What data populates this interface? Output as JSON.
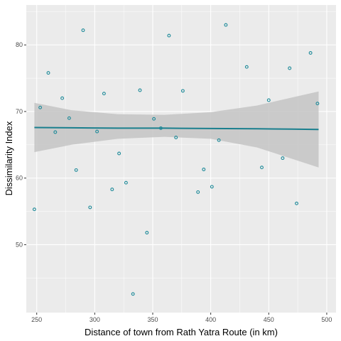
{
  "chart_data": {
    "type": "scatter",
    "title": "",
    "xlabel": "Distance of town from Rath Yatra Route (in km)",
    "ylabel": "Dissimilarity Index",
    "xlim": [
      241,
      508
    ],
    "ylim": [
      39.8,
      86
    ],
    "x_ticks": [
      250,
      300,
      350,
      400,
      450,
      500
    ],
    "y_ticks": [
      50,
      60,
      70,
      80
    ],
    "grid": true,
    "legend": "none",
    "colors": {
      "panel": "#ebebeb",
      "grid": "#ffffff",
      "point": "#1d8a99",
      "fit": "#1a7f8e",
      "ribbon": "#c4c4c4"
    },
    "points": [
      {
        "x": 248,
        "y": 55.3
      },
      {
        "x": 253,
        "y": 70.6
      },
      {
        "x": 260,
        "y": 75.8
      },
      {
        "x": 266,
        "y": 66.9
      },
      {
        "x": 272,
        "y": 72.0
      },
      {
        "x": 278,
        "y": 69.0
      },
      {
        "x": 284,
        "y": 61.2
      },
      {
        "x": 290,
        "y": 82.2
      },
      {
        "x": 296,
        "y": 55.6
      },
      {
        "x": 302,
        "y": 67.0
      },
      {
        "x": 308,
        "y": 72.7
      },
      {
        "x": 315,
        "y": 58.3
      },
      {
        "x": 321,
        "y": 63.7
      },
      {
        "x": 327,
        "y": 59.3
      },
      {
        "x": 333,
        "y": 42.6
      },
      {
        "x": 339,
        "y": 73.2
      },
      {
        "x": 345,
        "y": 51.8
      },
      {
        "x": 351,
        "y": 68.9
      },
      {
        "x": 357,
        "y": 67.5
      },
      {
        "x": 364,
        "y": 81.4
      },
      {
        "x": 370,
        "y": 66.1
      },
      {
        "x": 376,
        "y": 73.1
      },
      {
        "x": 389,
        "y": 57.9
      },
      {
        "x": 394,
        "y": 61.3
      },
      {
        "x": 401,
        "y": 58.7
      },
      {
        "x": 407,
        "y": 65.7
      },
      {
        "x": 413,
        "y": 83.0
      },
      {
        "x": 431,
        "y": 76.7
      },
      {
        "x": 444,
        "y": 61.6
      },
      {
        "x": 450,
        "y": 71.7
      },
      {
        "x": 462,
        "y": 63.0
      },
      {
        "x": 468,
        "y": 76.5
      },
      {
        "x": 474,
        "y": 56.2
      },
      {
        "x": 486,
        "y": 78.8
      },
      {
        "x": 492,
        "y": 71.2
      }
    ],
    "fit": {
      "x": [
        248,
        280,
        320,
        360,
        400,
        440,
        470,
        493
      ],
      "y": [
        67.6,
        67.55,
        67.5,
        67.5,
        67.45,
        67.4,
        67.35,
        67.3
      ],
      "lower": [
        63.9,
        65.0,
        65.9,
        66.2,
        65.9,
        64.6,
        62.9,
        61.6
      ],
      "upper": [
        71.3,
        70.2,
        69.6,
        69.5,
        69.9,
        70.9,
        72.1,
        73.0
      ]
    }
  }
}
